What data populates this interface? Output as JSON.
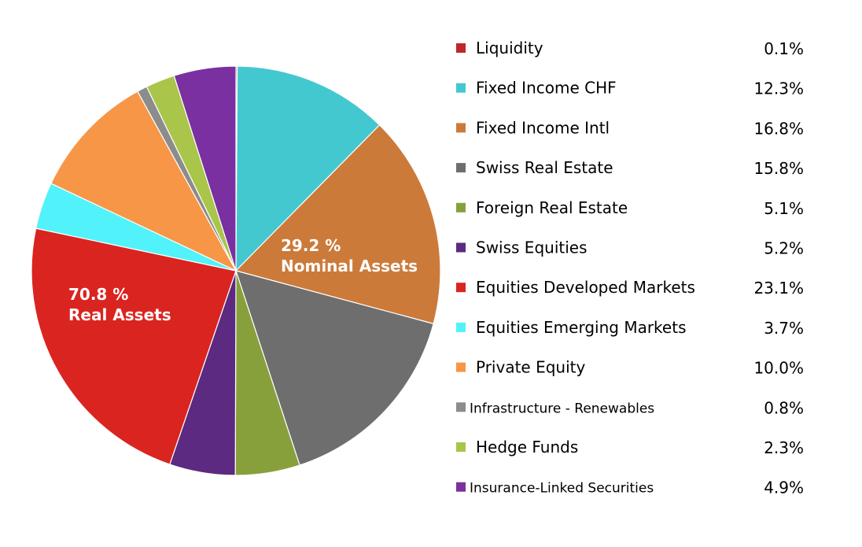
{
  "chart_data": {
    "type": "pie",
    "title": "",
    "start_angle_deg": 0,
    "direction": "clockwise",
    "legend_position": "right",
    "slices": [
      {
        "label": "Liquidity",
        "value": 0.1,
        "value_label": "0.1%",
        "color": "#C0262B"
      },
      {
        "label": "Fixed Income CHF",
        "value": 12.3,
        "value_label": "12.3%",
        "color": "#44C8D0"
      },
      {
        "label": "Fixed Income Intl",
        "value": 16.8,
        "value_label": "16.8%",
        "color": "#CC7A3A"
      },
      {
        "label": "Swiss Real Estate",
        "value": 15.8,
        "value_label": "15.8%",
        "color": "#6E6E6E"
      },
      {
        "label": "Foreign Real Estate",
        "value": 5.1,
        "value_label": "5.1%",
        "color": "#87A03C"
      },
      {
        "label": "Swiss Equities",
        "value": 5.2,
        "value_label": "5.2%",
        "color": "#5C2A80"
      },
      {
        "label": "Equities Developed Markets",
        "value": 23.1,
        "value_label": "23.1%",
        "color": "#DA2420"
      },
      {
        "label": "Equities Emerging Markets",
        "value": 3.7,
        "value_label": "3.7%",
        "color": "#52F2FA"
      },
      {
        "label": "Private Equity",
        "value": 10.0,
        "value_label": "10.0%",
        "color": "#F79647"
      },
      {
        "label": "Infrastructure - Renewables",
        "value": 0.8,
        "value_label": "0.8%",
        "color": "#8C8C8C"
      },
      {
        "label": "Hedge Funds",
        "value": 2.3,
        "value_label": "2.3%",
        "color": "#A9C54A"
      },
      {
        "label": "Insurance-Linked Securities",
        "value": 4.9,
        "value_label": "4.9%",
        "color": "#7A30A0"
      }
    ],
    "annotations": [
      {
        "id": "nominal",
        "line1": "29.2 %",
        "line2": "Nominal Assets"
      },
      {
        "id": "real",
        "line1": "70.8 %",
        "line2": "Real Assets"
      }
    ]
  }
}
